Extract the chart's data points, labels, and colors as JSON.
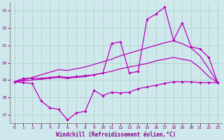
{
  "background_color": "#cfe8ec",
  "grid_color": "#b0d4cc",
  "line_color": "#bb00bb",
  "xlabel": "Windchill (Refroidissement éolien,°C)",
  "xlim": [
    -0.5,
    23.5
  ],
  "ylim": [
    16.5,
    23.5
  ],
  "yticks": [
    17,
    18,
    19,
    20,
    21,
    22,
    23
  ],
  "xticks": [
    0,
    1,
    2,
    3,
    4,
    5,
    6,
    7,
    8,
    9,
    10,
    11,
    12,
    13,
    14,
    15,
    16,
    17,
    18,
    19,
    20,
    21,
    22,
    23
  ],
  "smooth_low_x": [
    0,
    1,
    2,
    3,
    4,
    5,
    6,
    7,
    8,
    9,
    10,
    11,
    12,
    13,
    14,
    15,
    16,
    17,
    18,
    19,
    20,
    21,
    22,
    23
  ],
  "smooth_low_y": [
    18.9,
    18.95,
    19.0,
    19.05,
    19.1,
    19.15,
    19.1,
    19.15,
    19.2,
    19.3,
    19.4,
    19.5,
    19.65,
    19.75,
    19.85,
    19.95,
    20.1,
    20.2,
    20.3,
    20.2,
    20.1,
    19.7,
    19.2,
    18.85
  ],
  "smooth_high_x": [
    0,
    1,
    2,
    3,
    4,
    5,
    6,
    7,
    8,
    9,
    10,
    11,
    12,
    13,
    14,
    15,
    16,
    17,
    18,
    19,
    20,
    21,
    22,
    23
  ],
  "smooth_high_y": [
    18.9,
    19.0,
    19.15,
    19.3,
    19.45,
    19.6,
    19.55,
    19.65,
    19.75,
    19.9,
    20.05,
    20.2,
    20.4,
    20.55,
    20.7,
    20.85,
    21.0,
    21.15,
    21.25,
    21.1,
    20.85,
    20.4,
    19.65,
    18.85
  ],
  "jagged_low_x": [
    0,
    1,
    2,
    3,
    4,
    5,
    6,
    7,
    8,
    9,
    10,
    11,
    12,
    13,
    14,
    15,
    16,
    17,
    18,
    19,
    20,
    21,
    22,
    23
  ],
  "jagged_low_y": [
    18.9,
    18.85,
    18.8,
    17.8,
    17.4,
    17.3,
    16.7,
    17.1,
    17.2,
    18.4,
    18.1,
    18.3,
    18.25,
    18.3,
    18.5,
    18.6,
    18.7,
    18.8,
    18.9,
    18.9,
    18.9,
    18.85,
    18.85,
    18.85
  ],
  "jagged_high_x": [
    0,
    1,
    2,
    3,
    4,
    5,
    6,
    7,
    8,
    9,
    10,
    11,
    12,
    13,
    14,
    15,
    16,
    17,
    18,
    19,
    20,
    21,
    22,
    23
  ],
  "jagged_high_y": [
    18.9,
    19.1,
    19.1,
    19.1,
    19.15,
    19.2,
    19.15,
    19.2,
    19.25,
    19.3,
    19.4,
    21.1,
    21.2,
    19.4,
    19.5,
    22.5,
    22.8,
    23.2,
    21.3,
    22.3,
    20.9,
    20.8,
    20.3,
    18.85
  ]
}
